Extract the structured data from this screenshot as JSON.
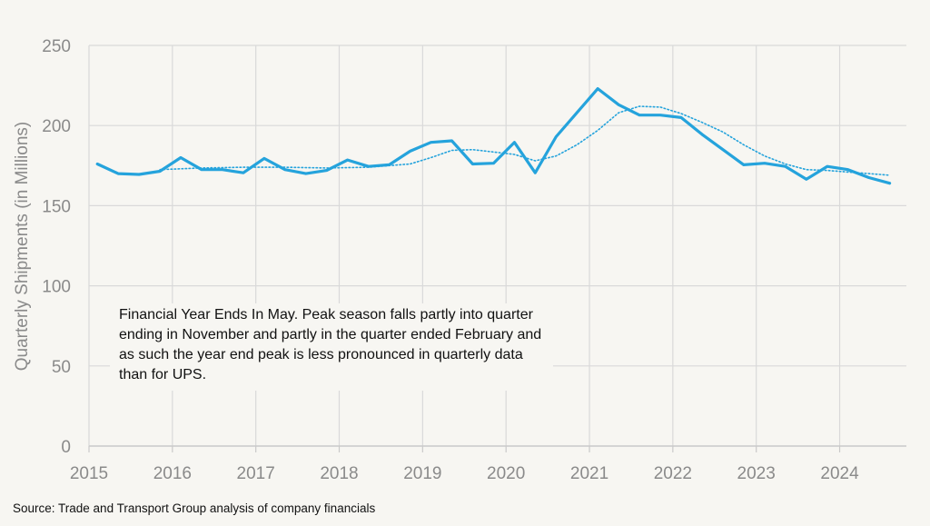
{
  "chart_data": {
    "type": "line",
    "ylabel": "Quarterly Shipments (in Millions)",
    "xlabel": "",
    "title": "",
    "ylim": [
      0,
      250
    ],
    "yticks": [
      0,
      50,
      100,
      150,
      200,
      250
    ],
    "xlim": [
      2015,
      2024.8
    ],
    "xticks": [
      2015,
      2016,
      2017,
      2018,
      2019,
      2020,
      2021,
      2022,
      2023,
      2024
    ],
    "grid": true,
    "legend": "none",
    "series": [
      {
        "style": "solid",
        "color": "#25a3dc",
        "x": [
          2015.1,
          2015.35,
          2015.6,
          2015.85,
          2016.1,
          2016.35,
          2016.6,
          2016.85,
          2017.1,
          2017.35,
          2017.6,
          2017.85,
          2018.1,
          2018.35,
          2018.6,
          2018.85,
          2019.1,
          2019.35,
          2019.6,
          2019.85,
          2020.1,
          2020.35,
          2020.6,
          2020.85,
          2021.1,
          2021.35,
          2021.6,
          2021.85,
          2022.1,
          2022.35,
          2022.6,
          2022.85,
          2023.1,
          2023.35,
          2023.6,
          2023.85,
          2024.1,
          2024.35,
          2024.6
        ],
        "values": [
          176,
          170,
          169.5,
          171.5,
          180,
          172.5,
          172.5,
          170.5,
          179.5,
          172.5,
          170,
          172,
          178.5,
          174.5,
          175.5,
          184,
          189.5,
          190.5,
          176,
          176.5,
          189.5,
          170.5,
          193,
          208,
          223,
          213,
          206.5,
          206.5,
          205,
          194.5,
          185,
          175.5,
          176.5,
          174.5,
          166.5,
          174.5,
          172.5,
          167.5,
          164
        ]
      },
      {
        "style": "dotted",
        "color": "#25a3dc",
        "x": [
          2015.85,
          2016.35,
          2016.85,
          2017.35,
          2017.85,
          2018.35,
          2018.85,
          2019.1,
          2019.35,
          2019.6,
          2019.85,
          2020.1,
          2020.35,
          2020.6,
          2020.85,
          2021.1,
          2021.35,
          2021.6,
          2021.85,
          2022.1,
          2022.35,
          2022.6,
          2022.85,
          2023.1,
          2023.35,
          2023.6,
          2023.85,
          2024.1,
          2024.35,
          2024.6
        ],
        "values": [
          172.5,
          173.5,
          174,
          174,
          173.5,
          174,
          176,
          180,
          184.5,
          185,
          183.5,
          182,
          178,
          181,
          188,
          197,
          208,
          212,
          211.5,
          207.5,
          202,
          196,
          188,
          181,
          176,
          172.5,
          172,
          171,
          170,
          169
        ]
      }
    ],
    "annotation": "Financial Year Ends In May. Peak season falls partly into quarter ending in November and partly in the quarter ended February and as such the year end peak is less pronounced in quarterly data than for UPS."
  },
  "footer": {
    "source": "Source: Trade and Transport Group analysis of company financials"
  }
}
